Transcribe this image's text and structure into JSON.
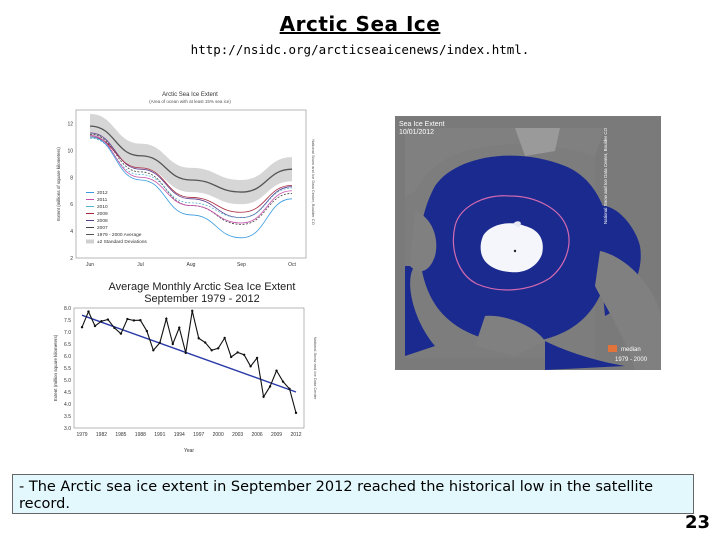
{
  "slide": {
    "title": "Arctic Sea Ice",
    "url": "http://nsidc.org/arcticseaicenews/index.html.",
    "caption": "- The Arctic sea ice extent in September 2012 reached the historical low in the satellite record.",
    "page_number": "23"
  },
  "figures": {
    "daily_chart": {
      "title": "Arctic Sea Ice Extent",
      "subtitle": "(Area of ocean with at least 15% sea ice)",
      "ylabel": "Extent (millions of square kilometers)",
      "credit": "National Snow and Ice Data Center, Boulder CO",
      "y_ticks": [
        "12",
        "10",
        "8",
        "6",
        "4",
        "2"
      ],
      "x_ticks": [
        "Jun",
        "Jul",
        "Aug",
        "Sep",
        "Oct"
      ],
      "legend": [
        "2012",
        "2011",
        "2010",
        "2009",
        "2008",
        "2007",
        "1979 - 2000 Average",
        "±2 Standard Deviations"
      ],
      "colors": [
        "#3a9be0",
        "#c44ea8",
        "#55b3d0",
        "#a6283e",
        "#5b3d8c",
        "#444444",
        "#555555",
        "#d0d0d0"
      ]
    },
    "monthly_chart": {
      "title_line1": "Average Monthly Arctic Sea Ice Extent",
      "title_line2": "September 1979 - 2012",
      "ylabel": "Extent (million square kilometers)",
      "xlabel": "Year",
      "credit": "National Snow and Ice Data Center",
      "y_ticks": [
        "8.0",
        "7.5",
        "7.0",
        "6.5",
        "6.0",
        "5.5",
        "5.0",
        "4.5",
        "4.0",
        "3.5",
        "3.0"
      ],
      "x_ticks": [
        "1979",
        "1982",
        "1985",
        "1988",
        "1991",
        "1994",
        "1997",
        "2000",
        "2003",
        "2006",
        "2009",
        "2012"
      ]
    },
    "map": {
      "title_line1": "Sea Ice Extent",
      "title_line2": "10/01/2012",
      "credit": "National Snow and Ice Data Center, Boulder CO",
      "legend_label": "median",
      "legend_years": "1979 - 2000",
      "median_color": "#e2733b"
    }
  },
  "chart_data": [
    {
      "type": "line",
      "title": "Arctic Sea Ice Extent",
      "ylabel": "Extent (millions of square kilometers)",
      "ylim": [
        2,
        13
      ],
      "x": [
        "Jun",
        "Jul",
        "Aug",
        "Sep",
        "Oct"
      ],
      "series": [
        {
          "name": "1979 - 2000 Average",
          "values": [
            11.8,
            9.6,
            7.8,
            6.9,
            8.6
          ]
        },
        {
          "name": "2007",
          "values": [
            11.2,
            8.4,
            5.9,
            4.5,
            6.8
          ]
        },
        {
          "name": "2008",
          "values": [
            11.3,
            8.6,
            6.4,
            5.0,
            7.3
          ]
        },
        {
          "name": "2009",
          "values": [
            11.0,
            8.7,
            6.5,
            5.4,
            7.4
          ]
        },
        {
          "name": "2010",
          "values": [
            10.9,
            8.2,
            6.1,
            5.0,
            7.2
          ]
        },
        {
          "name": "2011",
          "values": [
            11.1,
            8.0,
            5.9,
            4.6,
            7.0
          ]
        },
        {
          "name": "2012",
          "values": [
            11.0,
            7.8,
            5.2,
            3.5,
            6.4
          ]
        }
      ],
      "grid": false,
      "legend": "bottom-left"
    },
    {
      "type": "line",
      "title": "Average Monthly Arctic Sea Ice Extent September 1979 - 2012",
      "xlabel": "Year",
      "ylabel": "Extent (million square kilometers)",
      "ylim": [
        3.0,
        8.0
      ],
      "x": [
        1979,
        1980,
        1981,
        1982,
        1983,
        1984,
        1985,
        1986,
        1987,
        1988,
        1989,
        1990,
        1991,
        1992,
        1993,
        1994,
        1995,
        1996,
        1997,
        1998,
        1999,
        2000,
        2001,
        2002,
        2003,
        2004,
        2005,
        2006,
        2007,
        2008,
        2009,
        2010,
        2011,
        2012
      ],
      "series": [
        {
          "name": "Extent",
          "values": [
            7.2,
            7.85,
            7.25,
            7.45,
            7.52,
            7.17,
            6.93,
            7.54,
            7.48,
            7.49,
            7.04,
            6.24,
            6.55,
            7.55,
            6.5,
            7.18,
            6.13,
            7.88,
            6.74,
            6.56,
            6.24,
            6.32,
            6.75,
            5.96,
            6.15,
            6.05,
            5.57,
            5.92,
            4.3,
            4.73,
            5.39,
            4.93,
            4.63,
            3.63
          ]
        },
        {
          "name": "Trend",
          "values": [
            7.7,
            4.5
          ],
          "x": [
            1979,
            2012
          ]
        }
      ],
      "grid": false
    }
  ]
}
